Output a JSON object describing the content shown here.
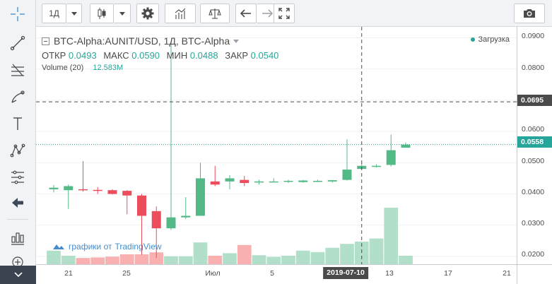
{
  "toolbar": {
    "interval": "1Д",
    "buttons": [
      "crosshair-icon",
      "candles-icon",
      "settings-icon",
      "indicators-icon",
      "compare-icon",
      "undo-icon",
      "redo-icon",
      "fullscreen-icon",
      "camera-icon"
    ]
  },
  "left_toolbar": {
    "tools": [
      "crosshair-icon",
      "trend-line-icon",
      "fib-icon",
      "brush-icon",
      "text-icon",
      "pattern-icon",
      "measure-icon",
      "back-arrow-icon",
      "stats-icon",
      "zoom-icon"
    ]
  },
  "legend": {
    "symbol": "BTC-Alpha:AUNIT/USD, 1Д, BTC-Alpha",
    "open_label": "ОТКР",
    "open": "0.0493",
    "high_label": "МАКС",
    "high": "0.0590",
    "low_label": "МИН",
    "low": "0.0488",
    "close_label": "ЗАКР",
    "close": "0.0540",
    "volume_label": "Volume (20)",
    "volume_value": "12.583M"
  },
  "status": {
    "loading": "Загрузка"
  },
  "watermark": {
    "prefix": "графики от",
    "brand": "TradingView"
  },
  "price_axis": {
    "ticks": [
      "0.0900",
      "0.0800",
      "0.0600",
      "0.0500",
      "0.0400",
      "0.0300",
      "0.0200"
    ],
    "crosshair_price": "0.0695",
    "last_price": "0.0558"
  },
  "time_axis": {
    "ticks": [
      "21",
      "25",
      "Июл",
      "5",
      "13",
      "17",
      "21"
    ],
    "crosshair_date": "2019-07-10"
  },
  "colors": {
    "up": "#53b987",
    "down": "#eb4d5c",
    "vol_up": "#a9dcc3",
    "vol_down": "#f7a9a7",
    "last_price": "#26a69a",
    "crosshair": "#4a4a4a"
  },
  "chart_data": {
    "type": "candlestick",
    "y_range": [
      0.0175,
      0.0935
    ],
    "candles": [
      {
        "o": 0.0415,
        "h": 0.0428,
        "l": 0.0405,
        "c": 0.042
      },
      {
        "o": 0.0412,
        "h": 0.043,
        "l": 0.0352,
        "c": 0.0425
      },
      {
        "o": 0.0415,
        "h": 0.0505,
        "l": 0.0408,
        "c": 0.0412
      },
      {
        "o": 0.0413,
        "h": 0.0422,
        "l": 0.04,
        "c": 0.0412
      },
      {
        "o": 0.0412,
        "h": 0.0415,
        "l": 0.0398,
        "c": 0.04
      },
      {
        "o": 0.041,
        "h": 0.0412,
        "l": 0.0335,
        "c": 0.0395
      },
      {
        "o": 0.0395,
        "h": 0.04,
        "l": 0.0205,
        "c": 0.033
      },
      {
        "o": 0.0345,
        "h": 0.036,
        "l": 0.0195,
        "c": 0.029
      },
      {
        "o": 0.029,
        "h": 0.089,
        "l": 0.0285,
        "c": 0.0325
      },
      {
        "o": 0.0325,
        "h": 0.039,
        "l": 0.032,
        "c": 0.033
      },
      {
        "o": 0.033,
        "h": 0.05,
        "l": 0.033,
        "c": 0.045
      },
      {
        "o": 0.044,
        "h": 0.049,
        "l": 0.0425,
        "c": 0.043
      },
      {
        "o": 0.044,
        "h": 0.046,
        "l": 0.0415,
        "c": 0.045
      },
      {
        "o": 0.0445,
        "h": 0.0458,
        "l": 0.0425,
        "c": 0.0435
      },
      {
        "o": 0.0438,
        "h": 0.0445,
        "l": 0.043,
        "c": 0.044
      },
      {
        "o": 0.044,
        "h": 0.045,
        "l": 0.0438,
        "c": 0.044
      },
      {
        "o": 0.044,
        "h": 0.0445,
        "l": 0.0435,
        "c": 0.0442
      },
      {
        "o": 0.0438,
        "h": 0.0445,
        "l": 0.0436,
        "c": 0.0443
      },
      {
        "o": 0.044,
        "h": 0.0445,
        "l": 0.0438,
        "c": 0.0442
      },
      {
        "o": 0.044,
        "h": 0.0445,
        "l": 0.0436,
        "c": 0.0444
      },
      {
        "o": 0.0445,
        "h": 0.0575,
        "l": 0.0443,
        "c": 0.0478
      },
      {
        "o": 0.048,
        "h": 0.05,
        "l": 0.0478,
        "c": 0.049
      },
      {
        "o": 0.0488,
        "h": 0.0495,
        "l": 0.0485,
        "c": 0.049
      },
      {
        "o": 0.0493,
        "h": 0.059,
        "l": 0.0488,
        "c": 0.054
      },
      {
        "o": 0.0548,
        "h": 0.0565,
        "l": 0.0548,
        "c": 0.0558
      }
    ],
    "volumes": [
      0.48,
      0.3,
      0.22,
      0.24,
      0.27,
      0.35,
      0.35,
      0.42,
      0.28,
      0.28,
      0.77,
      0.3,
      0.39,
      0.68,
      0.32,
      0.26,
      0.3,
      0.48,
      0.43,
      0.58,
      0.72,
      0.8,
      0.91,
      2.0,
      0.3
    ]
  }
}
